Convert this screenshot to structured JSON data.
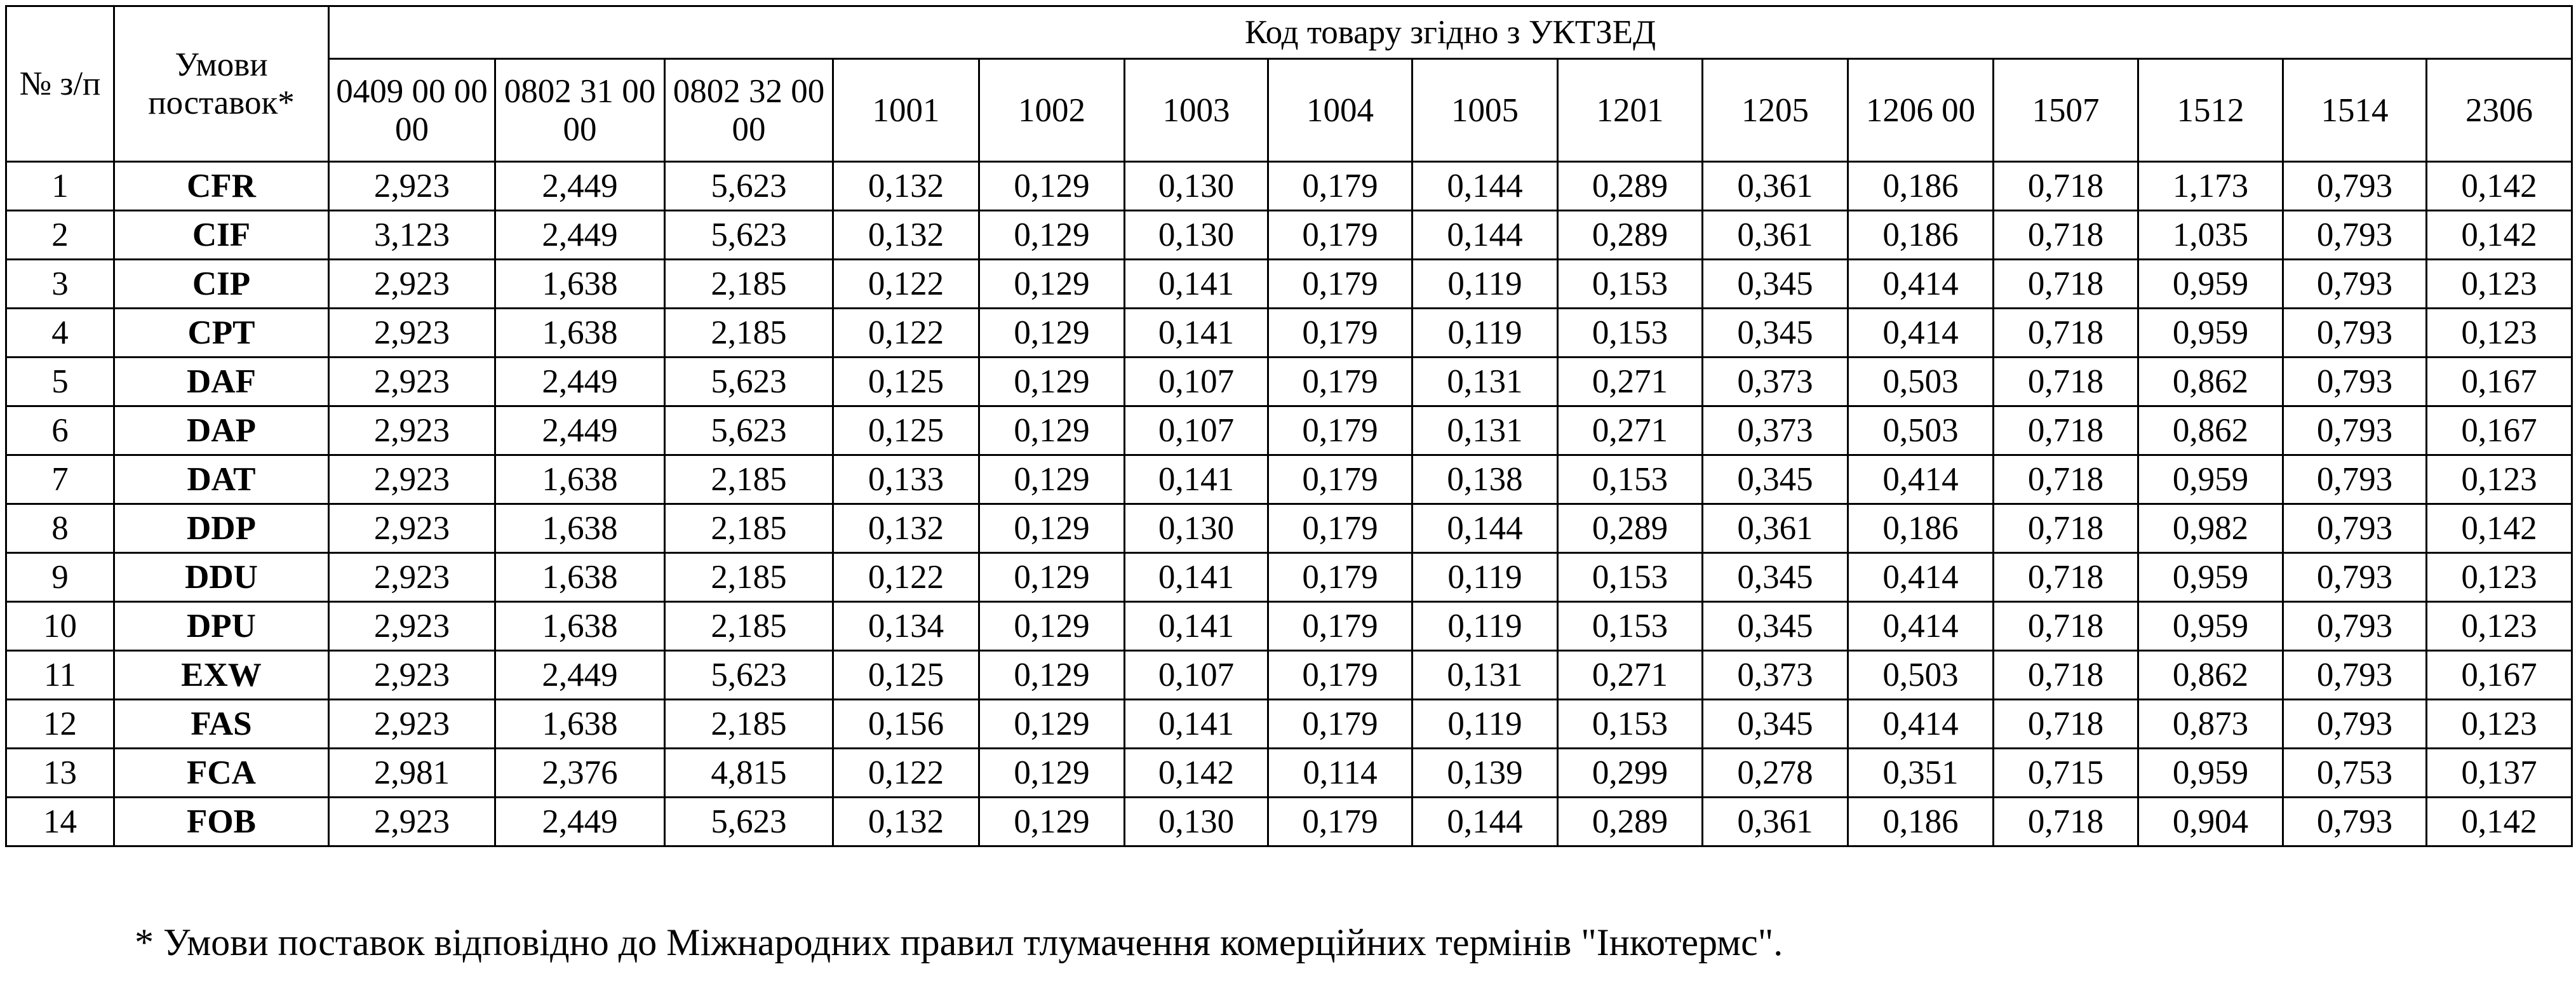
{
  "table": {
    "header_no": "№ з/п",
    "header_terms": "Умови поставок*",
    "header_group": "Код товару згідно з УКТЗЕД",
    "codes": [
      "0409 00 00 00",
      "0802 31 00 00",
      "0802 32 00 00",
      "1001",
      "1002",
      "1003",
      "1004",
      "1005",
      "1201",
      "1205",
      "1206 00",
      "1507",
      "1512",
      "1514",
      "2306"
    ],
    "rows": [
      {
        "no": "1",
        "term": "CFR",
        "values": [
          "2,923",
          "2,449",
          "5,623",
          "0,132",
          "0,129",
          "0,130",
          "0,179",
          "0,144",
          "0,289",
          "0,361",
          "0,186",
          "0,718",
          "1,173",
          "0,793",
          "0,142"
        ]
      },
      {
        "no": "2",
        "term": "CIF",
        "values": [
          "3,123",
          "2,449",
          "5,623",
          "0,132",
          "0,129",
          "0,130",
          "0,179",
          "0,144",
          "0,289",
          "0,361",
          "0,186",
          "0,718",
          "1,035",
          "0,793",
          "0,142"
        ]
      },
      {
        "no": "3",
        "term": "CIP",
        "values": [
          "2,923",
          "1,638",
          "2,185",
          "0,122",
          "0,129",
          "0,141",
          "0,179",
          "0,119",
          "0,153",
          "0,345",
          "0,414",
          "0,718",
          "0,959",
          "0,793",
          "0,123"
        ]
      },
      {
        "no": "4",
        "term": "CPT",
        "values": [
          "2,923",
          "1,638",
          "2,185",
          "0,122",
          "0,129",
          "0,141",
          "0,179",
          "0,119",
          "0,153",
          "0,345",
          "0,414",
          "0,718",
          "0,959",
          "0,793",
          "0,123"
        ]
      },
      {
        "no": "5",
        "term": "DAF",
        "values": [
          "2,923",
          "2,449",
          "5,623",
          "0,125",
          "0,129",
          "0,107",
          "0,179",
          "0,131",
          "0,271",
          "0,373",
          "0,503",
          "0,718",
          "0,862",
          "0,793",
          "0,167"
        ]
      },
      {
        "no": "6",
        "term": "DAP",
        "values": [
          "2,923",
          "2,449",
          "5,623",
          "0,125",
          "0,129",
          "0,107",
          "0,179",
          "0,131",
          "0,271",
          "0,373",
          "0,503",
          "0,718",
          "0,862",
          "0,793",
          "0,167"
        ]
      },
      {
        "no": "7",
        "term": "DAT",
        "values": [
          "2,923",
          "1,638",
          "2,185",
          "0,133",
          "0,129",
          "0,141",
          "0,179",
          "0,138",
          "0,153",
          "0,345",
          "0,414",
          "0,718",
          "0,959",
          "0,793",
          "0,123"
        ]
      },
      {
        "no": "8",
        "term": "DDP",
        "values": [
          "2,923",
          "1,638",
          "2,185",
          "0,132",
          "0,129",
          "0,130",
          "0,179",
          "0,144",
          "0,289",
          "0,361",
          "0,186",
          "0,718",
          "0,982",
          "0,793",
          "0,142"
        ]
      },
      {
        "no": "9",
        "term": "DDU",
        "values": [
          "2,923",
          "1,638",
          "2,185",
          "0,122",
          "0,129",
          "0,141",
          "0,179",
          "0,119",
          "0,153",
          "0,345",
          "0,414",
          "0,718",
          "0,959",
          "0,793",
          "0,123"
        ]
      },
      {
        "no": "10",
        "term": "DPU",
        "values": [
          "2,923",
          "1,638",
          "2,185",
          "0,134",
          "0,129",
          "0,141",
          "0,179",
          "0,119",
          "0,153",
          "0,345",
          "0,414",
          "0,718",
          "0,959",
          "0,793",
          "0,123"
        ]
      },
      {
        "no": "11",
        "term": "EXW",
        "values": [
          "2,923",
          "2,449",
          "5,623",
          "0,125",
          "0,129",
          "0,107",
          "0,179",
          "0,131",
          "0,271",
          "0,373",
          "0,503",
          "0,718",
          "0,862",
          "0,793",
          "0,167"
        ]
      },
      {
        "no": "12",
        "term": "FAS",
        "values": [
          "2,923",
          "1,638",
          "2,185",
          "0,156",
          "0,129",
          "0,141",
          "0,179",
          "0,119",
          "0,153",
          "0,345",
          "0,414",
          "0,718",
          "0,873",
          "0,793",
          "0,123"
        ]
      },
      {
        "no": "13",
        "term": "FCA",
        "values": [
          "2,981",
          "2,376",
          "4,815",
          "0,122",
          "0,129",
          "0,142",
          "0,114",
          "0,139",
          "0,299",
          "0,278",
          "0,351",
          "0,715",
          "0,959",
          "0,753",
          "0,137"
        ]
      },
      {
        "no": "14",
        "term": "FOB",
        "values": [
          "2,923",
          "2,449",
          "5,623",
          "0,132",
          "0,129",
          "0,130",
          "0,179",
          "0,144",
          "0,289",
          "0,361",
          "0,186",
          "0,718",
          "0,904",
          "0,793",
          "0,142"
        ]
      }
    ]
  },
  "footnote": "* Умови поставок відповідно до Міжнародних правил тлумачення комерційних термінів \"Інкотермс\"."
}
